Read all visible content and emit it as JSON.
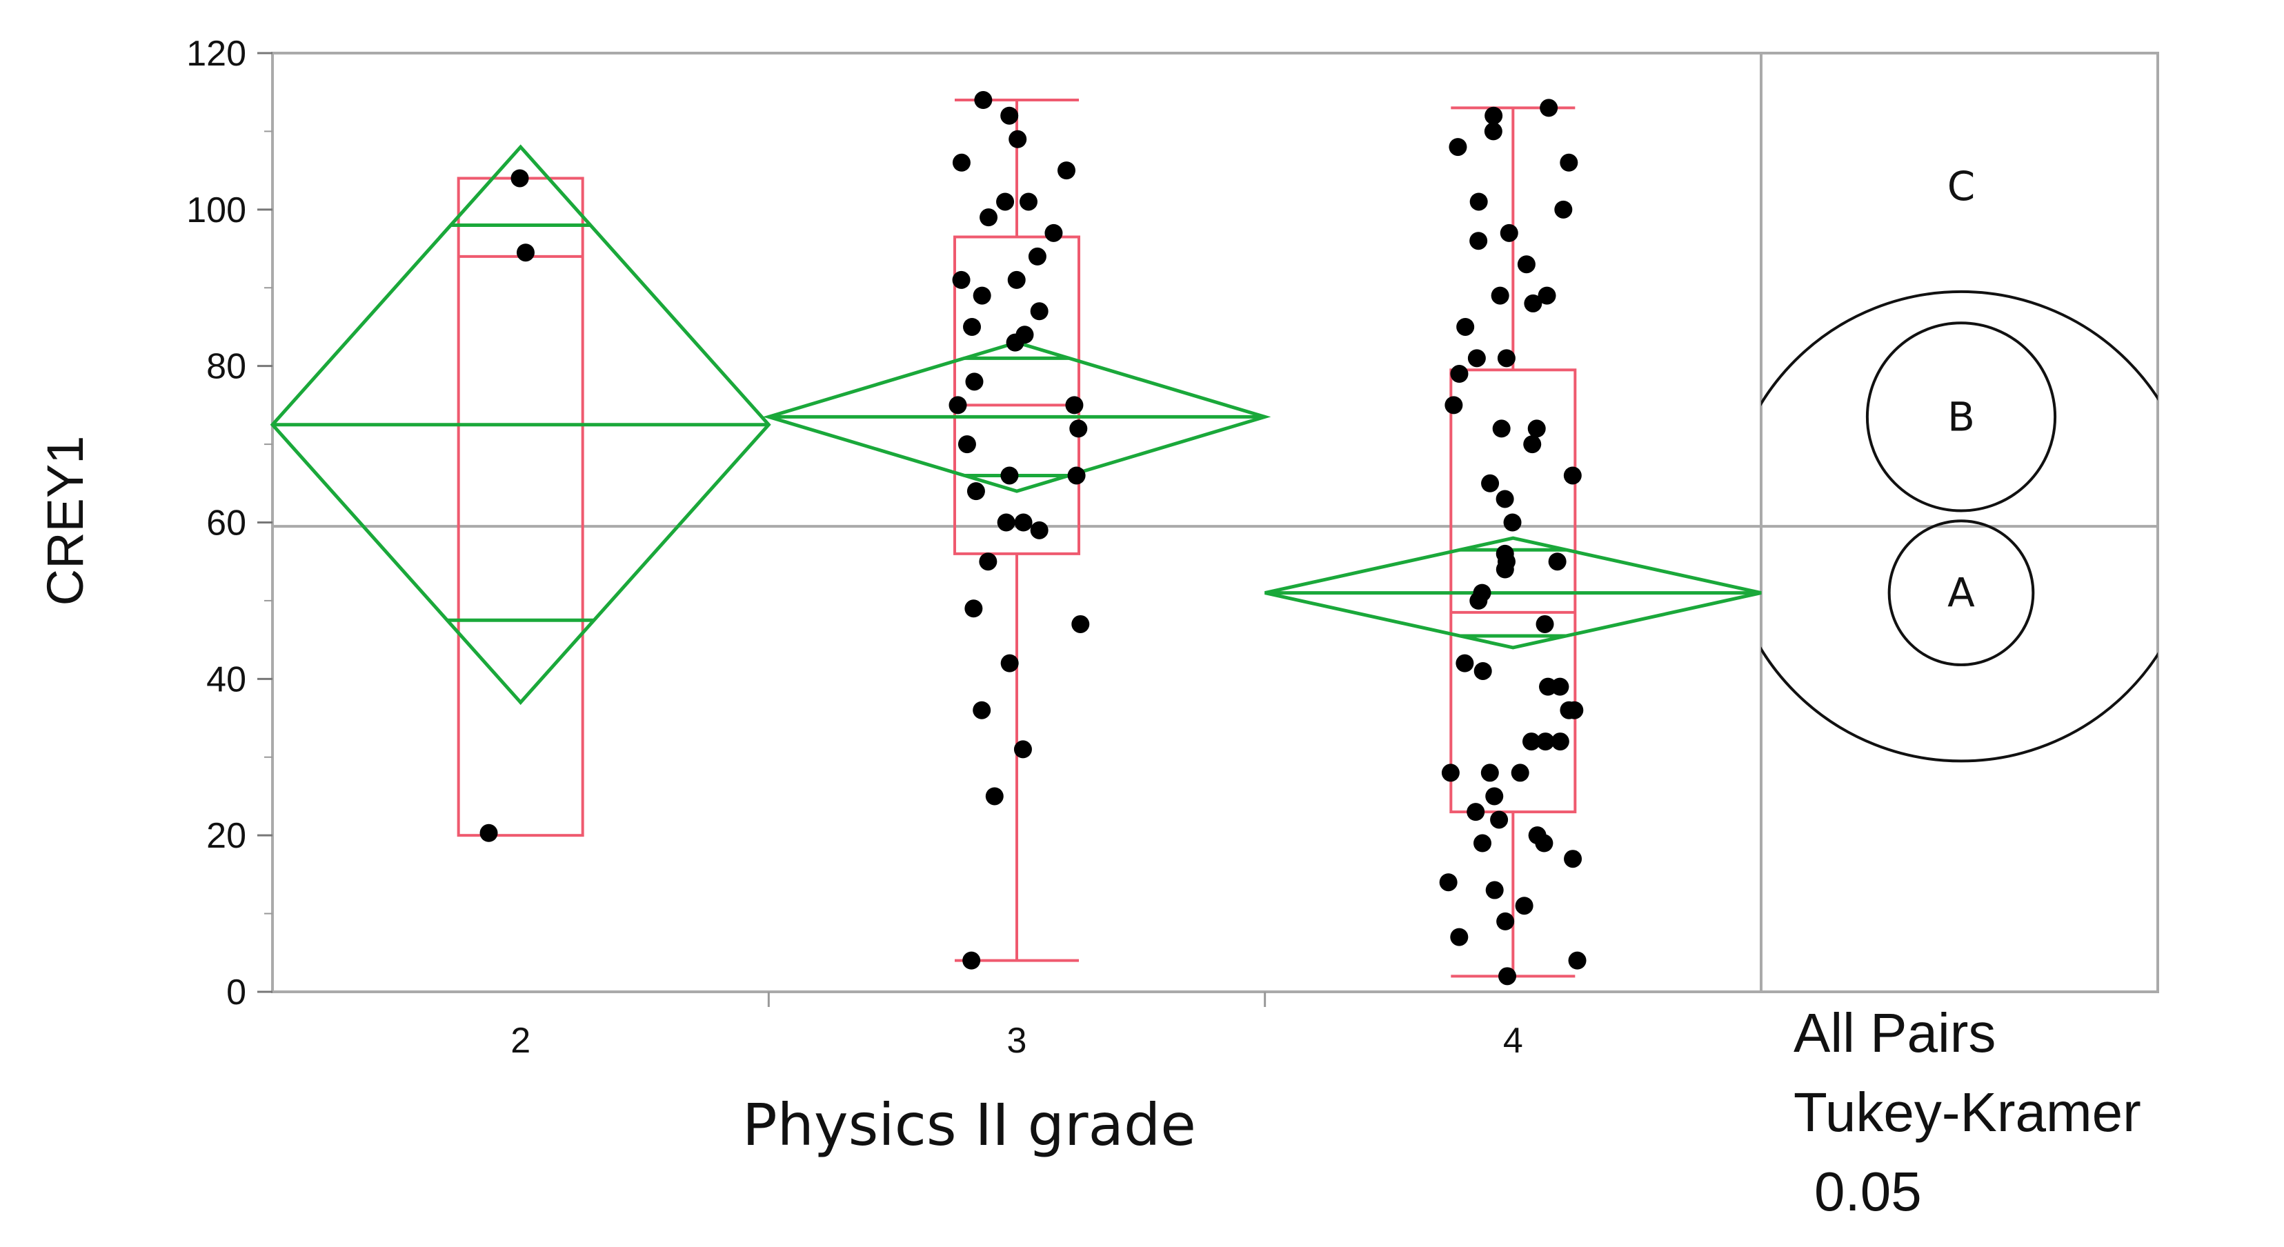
{
  "chart_data": {
    "type": "scatter",
    "title": "",
    "xlabel": "Physics II grade",
    "ylabel": "CREY1",
    "ylim": [
      0,
      120
    ],
    "yticks": [
      "0",
      "20",
      "40",
      "60",
      "80",
      "100",
      "120"
    ],
    "grand_mean": 59.5,
    "categories": [
      "2",
      "3",
      "4"
    ],
    "groups": [
      {
        "category": "2",
        "mean": 72.5,
        "ci": [
          37,
          108
        ],
        "overlap_marks": [
          47.5,
          98
        ],
        "box": {
          "q1": 20,
          "median": 94,
          "q3": 104,
          "whisker_low": 20,
          "whisker_high": 104
        },
        "points": [
          104,
          94.5,
          20.3
        ]
      },
      {
        "category": "3",
        "mean": 73.5,
        "ci": [
          64,
          83
        ],
        "overlap_marks": [
          66,
          81
        ],
        "box": {
          "q1": 56,
          "median": 75,
          "q3": 96.5,
          "whisker_low": 4,
          "whisker_high": 114
        },
        "points": [
          114,
          112,
          109,
          106,
          105,
          101,
          101,
          99,
          97,
          94,
          91,
          91,
          89,
          87,
          85,
          84,
          83,
          78,
          75,
          75,
          72,
          70,
          66,
          66,
          64,
          60,
          60,
          59,
          55,
          49,
          47,
          42,
          36,
          31,
          25,
          4
        ]
      },
      {
        "category": "4",
        "mean": 51,
        "ci": [
          44,
          58
        ],
        "overlap_marks": [
          45.5,
          56.5
        ],
        "box": {
          "q1": 23,
          "median": 48.5,
          "q3": 79.5,
          "whisker_low": 2,
          "whisker_high": 113
        },
        "points": [
          113,
          112,
          110,
          108,
          106,
          101,
          100,
          97,
          96,
          93,
          89,
          89,
          88,
          85,
          81,
          81,
          79,
          75,
          72,
          72,
          70,
          66,
          65,
          63,
          60,
          56,
          55,
          55,
          54,
          51,
          50,
          47,
          42,
          41,
          39,
          39,
          36,
          36,
          32,
          32,
          32,
          28,
          28,
          28,
          25,
          23,
          22,
          20,
          19,
          19,
          17,
          14,
          13,
          11,
          9,
          7,
          4,
          2
        ]
      }
    ],
    "comparison": {
      "method": [
        "All Pairs",
        "Tukey-Kramer",
        "0.05"
      ],
      "circles": [
        {
          "label": "C",
          "center": 59.5,
          "radius": 30
        },
        {
          "label": "B",
          "center": 73.5,
          "radius": 12
        },
        {
          "label": "A",
          "center": 51,
          "radius": 9.2
        }
      ]
    },
    "colors": {
      "diamond": "#1aa83a",
      "box": "#ef5a6f",
      "points": "#000000",
      "frame": "#aaaaaa",
      "circles": "#111111"
    }
  }
}
